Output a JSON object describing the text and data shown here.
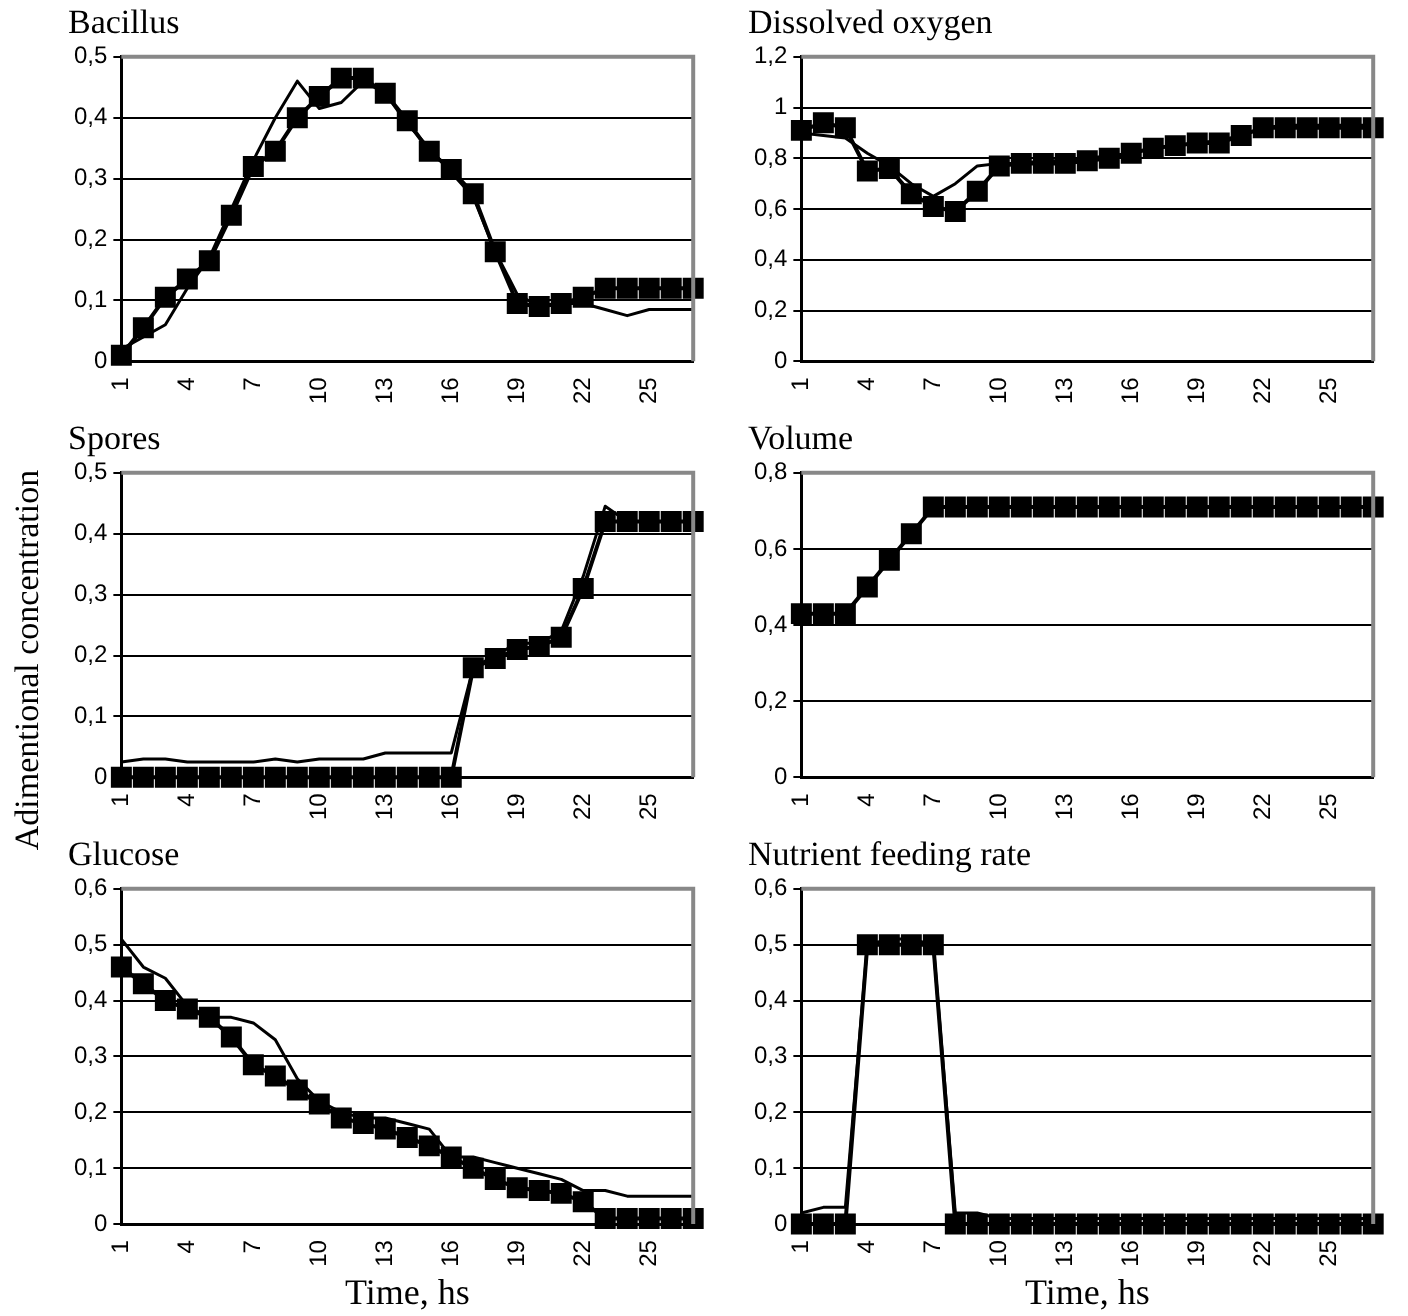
{
  "chart_data": [
    {
      "type": "line",
      "title": "Bacillus",
      "categories": [
        "1",
        null,
        null,
        "4",
        null,
        null,
        "7",
        null,
        null,
        "10",
        null,
        null,
        "13",
        null,
        null,
        "16",
        null,
        null,
        "19",
        null,
        null,
        "22",
        null,
        null,
        "25",
        null,
        null
      ],
      "ylim": [
        0,
        0.5
      ],
      "yticks": [
        {
          "value": 0,
          "label": "0"
        },
        {
          "value": 0.1,
          "label": "0,1"
        },
        {
          "value": 0.2,
          "label": "0,2"
        },
        {
          "value": 0.3,
          "label": "0,3"
        },
        {
          "value": 0.4,
          "label": "0,4"
        },
        {
          "value": 0.5,
          "label": "0,5"
        }
      ],
      "grid": "y",
      "series": [
        {
          "color": "#000000",
          "marker": "square",
          "values": [
            0.01,
            0.055,
            0.105,
            0.135,
            0.165,
            0.24,
            0.32,
            0.345,
            0.4,
            0.435,
            0.465,
            0.465,
            0.44,
            0.395,
            0.345,
            0.315,
            0.275,
            0.18,
            0.095,
            0.09,
            0.095,
            0.105,
            0.12,
            0.12,
            0.12,
            0.12,
            0.12
          ]
        },
        {
          "color": "#000000",
          "marker": "none",
          "values": [
            0.02,
            0.04,
            0.06,
            0.12,
            0.17,
            0.25,
            0.33,
            0.4,
            0.46,
            0.415,
            0.425,
            0.46,
            0.44,
            0.39,
            0.35,
            0.31,
            0.27,
            0.18,
            0.11,
            0.09,
            0.095,
            0.095,
            0.085,
            0.075,
            0.085,
            0.085,
            0.085
          ]
        }
      ]
    },
    {
      "type": "line",
      "title": "Dissolved oxygen",
      "categories": [
        "1",
        null,
        null,
        "4",
        null,
        null,
        "7",
        null,
        null,
        "10",
        null,
        null,
        "13",
        null,
        null,
        "16",
        null,
        null,
        "19",
        null,
        null,
        "22",
        null,
        null,
        "25",
        null,
        null
      ],
      "ylim": [
        0,
        1.2
      ],
      "yticks": [
        {
          "value": 0,
          "label": "0"
        },
        {
          "value": 0.2,
          "label": "0,2"
        },
        {
          "value": 0.4,
          "label": "0,4"
        },
        {
          "value": 0.6,
          "label": "0,6"
        },
        {
          "value": 0.8,
          "label": "0,8"
        },
        1,
        {
          "value": 1.2,
          "label": "1,2"
        }
      ],
      "grid": "y",
      "series": [
        {
          "color": "#000000",
          "marker": "square",
          "values": [
            0.91,
            0.94,
            0.92,
            0.75,
            0.76,
            0.66,
            0.61,
            0.59,
            0.67,
            0.77,
            0.78,
            0.78,
            0.78,
            0.79,
            0.8,
            0.82,
            0.84,
            0.85,
            0.86,
            0.86,
            0.89,
            0.92,
            0.92,
            0.92,
            0.92,
            0.92,
            0.92
          ]
        },
        {
          "color": "#000000",
          "marker": "none",
          "values": [
            0.9,
            0.89,
            0.88,
            0.82,
            0.77,
            0.7,
            0.65,
            0.7,
            0.77,
            0.78,
            0.78,
            0.79,
            0.79,
            0.8,
            0.81,
            0.82,
            0.84,
            0.85,
            0.86,
            0.87,
            0.89,
            0.92,
            0.93,
            0.93,
            0.93,
            0.93,
            0.93
          ]
        }
      ]
    },
    {
      "type": "line",
      "title": "Spores",
      "ylabel": "Adimentional concentration",
      "categories": [
        "1",
        null,
        null,
        "4",
        null,
        null,
        "7",
        null,
        null,
        "10",
        null,
        null,
        "13",
        null,
        null,
        "16",
        null,
        null,
        "19",
        null,
        null,
        "22",
        null,
        null,
        "25",
        null,
        null
      ],
      "ylim": [
        0,
        0.5
      ],
      "yticks": [
        {
          "value": 0,
          "label": "0"
        },
        {
          "value": 0.1,
          "label": "0,1"
        },
        {
          "value": 0.2,
          "label": "0,2"
        },
        {
          "value": 0.3,
          "label": "0,3"
        },
        {
          "value": 0.4,
          "label": "0,4"
        },
        {
          "value": 0.5,
          "label": "0,5"
        }
      ],
      "grid": "y",
      "series": [
        {
          "color": "#000000",
          "marker": "square",
          "values": [
            0,
            0,
            0,
            0,
            0,
            0,
            0,
            0,
            0,
            0,
            0,
            0,
            0,
            0,
            0,
            0,
            0.18,
            0.195,
            0.21,
            0.215,
            0.23,
            0.31,
            0.42,
            0.42,
            0.42,
            0.42,
            0.42
          ]
        },
        {
          "color": "#000000",
          "marker": "none",
          "values": [
            0.025,
            0.03,
            0.03,
            0.025,
            0.025,
            0.025,
            0.025,
            0.03,
            0.025,
            0.03,
            0.03,
            0.03,
            0.04,
            0.04,
            0.04,
            0.04,
            0.18,
            0.2,
            0.22,
            0.22,
            0.24,
            0.33,
            0.445,
            0.42,
            0.42,
            0.42,
            0.42
          ]
        }
      ]
    },
    {
      "type": "line",
      "title": "Volume",
      "categories": [
        "1",
        null,
        null,
        "4",
        null,
        null,
        "7",
        null,
        null,
        "10",
        null,
        null,
        "13",
        null,
        null,
        "16",
        null,
        null,
        "19",
        null,
        null,
        "22",
        null,
        null,
        "25",
        null,
        null
      ],
      "ylim": [
        0,
        0.8
      ],
      "yticks": [
        {
          "value": 0,
          "label": "0"
        },
        {
          "value": 0.2,
          "label": "0,2"
        },
        {
          "value": 0.4,
          "label": "0,4"
        },
        {
          "value": 0.6,
          "label": "0,6"
        },
        {
          "value": 0.8,
          "label": "0,8"
        }
      ],
      "grid": "y",
      "series": [
        {
          "color": "#000000",
          "marker": "square",
          "values": [
            0.43,
            0.43,
            0.43,
            0.5,
            0.57,
            0.64,
            0.71,
            0.71,
            0.71,
            0.71,
            0.71,
            0.71,
            0.71,
            0.71,
            0.71,
            0.71,
            0.71,
            0.71,
            0.71,
            0.71,
            0.71,
            0.71,
            0.71,
            0.71,
            0.71,
            0.71,
            0.71
          ]
        }
      ]
    },
    {
      "type": "line",
      "title": "Glucose",
      "xlabel": "Time, hs",
      "categories": [
        "1",
        null,
        null,
        "4",
        null,
        null,
        "7",
        null,
        null,
        "10",
        null,
        null,
        "13",
        null,
        null,
        "16",
        null,
        null,
        "19",
        null,
        null,
        "22",
        null,
        null,
        "25",
        null,
        null
      ],
      "ylim": [
        0,
        0.6
      ],
      "yticks": [
        {
          "value": 0,
          "label": "0"
        },
        {
          "value": 0.1,
          "label": "0,1"
        },
        {
          "value": 0.2,
          "label": "0,2"
        },
        {
          "value": 0.3,
          "label": "0,3"
        },
        {
          "value": 0.4,
          "label": "0,4"
        },
        {
          "value": 0.5,
          "label": "0,5"
        },
        {
          "value": 0.6,
          "label": "0,6"
        }
      ],
      "grid": "y",
      "series": [
        {
          "color": "#000000",
          "marker": "square",
          "values": [
            0.46,
            0.43,
            0.4,
            0.385,
            0.37,
            0.335,
            0.285,
            0.265,
            0.24,
            0.215,
            0.19,
            0.18,
            0.17,
            0.155,
            0.14,
            0.12,
            0.1,
            0.08,
            0.065,
            0.06,
            0.055,
            0.04,
            0.01,
            0.01,
            0.01,
            0.01,
            0.01
          ]
        },
        {
          "color": "#000000",
          "marker": "none",
          "values": [
            0.51,
            0.46,
            0.44,
            0.39,
            0.37,
            0.37,
            0.36,
            0.33,
            0.26,
            0.22,
            0.2,
            0.19,
            0.19,
            0.18,
            0.17,
            0.12,
            0.12,
            0.11,
            0.1,
            0.09,
            0.08,
            0.06,
            0.06,
            0.05,
            0.05,
            0.05,
            0.05
          ]
        }
      ]
    },
    {
      "type": "line",
      "title": "Nutrient feeding rate",
      "xlabel": "Time, hs",
      "categories": [
        "1",
        null,
        null,
        "4",
        null,
        null,
        "7",
        null,
        null,
        "10",
        null,
        null,
        "13",
        null,
        null,
        "16",
        null,
        null,
        "19",
        null,
        null,
        "22",
        null,
        null,
        "25",
        null,
        null
      ],
      "ylim": [
        0,
        0.6
      ],
      "yticks": [
        {
          "value": 0,
          "label": "0"
        },
        {
          "value": 0.1,
          "label": "0,1"
        },
        {
          "value": 0.2,
          "label": "0,2"
        },
        {
          "value": 0.3,
          "label": "0,3"
        },
        {
          "value": 0.4,
          "label": "0,4"
        },
        {
          "value": 0.5,
          "label": "0,5"
        },
        {
          "value": 0.6,
          "label": "0,6"
        }
      ],
      "grid": "y",
      "series": [
        {
          "color": "#000000",
          "marker": "square",
          "values": [
            0,
            0,
            0,
            0.5,
            0.5,
            0.5,
            0.5,
            0,
            0,
            0,
            0,
            0,
            0,
            0,
            0,
            0,
            0,
            0,
            0,
            0,
            0,
            0,
            0,
            0,
            0,
            0,
            0
          ]
        },
        {
          "color": "#000000",
          "marker": "none",
          "values": [
            0.02,
            0.03,
            0.03,
            0.5,
            0.51,
            0.51,
            0.5,
            0.02,
            0.02,
            0.01,
            0.01,
            0.01,
            0.01,
            0.01,
            0.01,
            0.01,
            0.01,
            0.01,
            0.01,
            0.01,
            0.01,
            0.01,
            0.01,
            0.01,
            0.01,
            0.01,
            0.01
          ]
        }
      ]
    }
  ]
}
